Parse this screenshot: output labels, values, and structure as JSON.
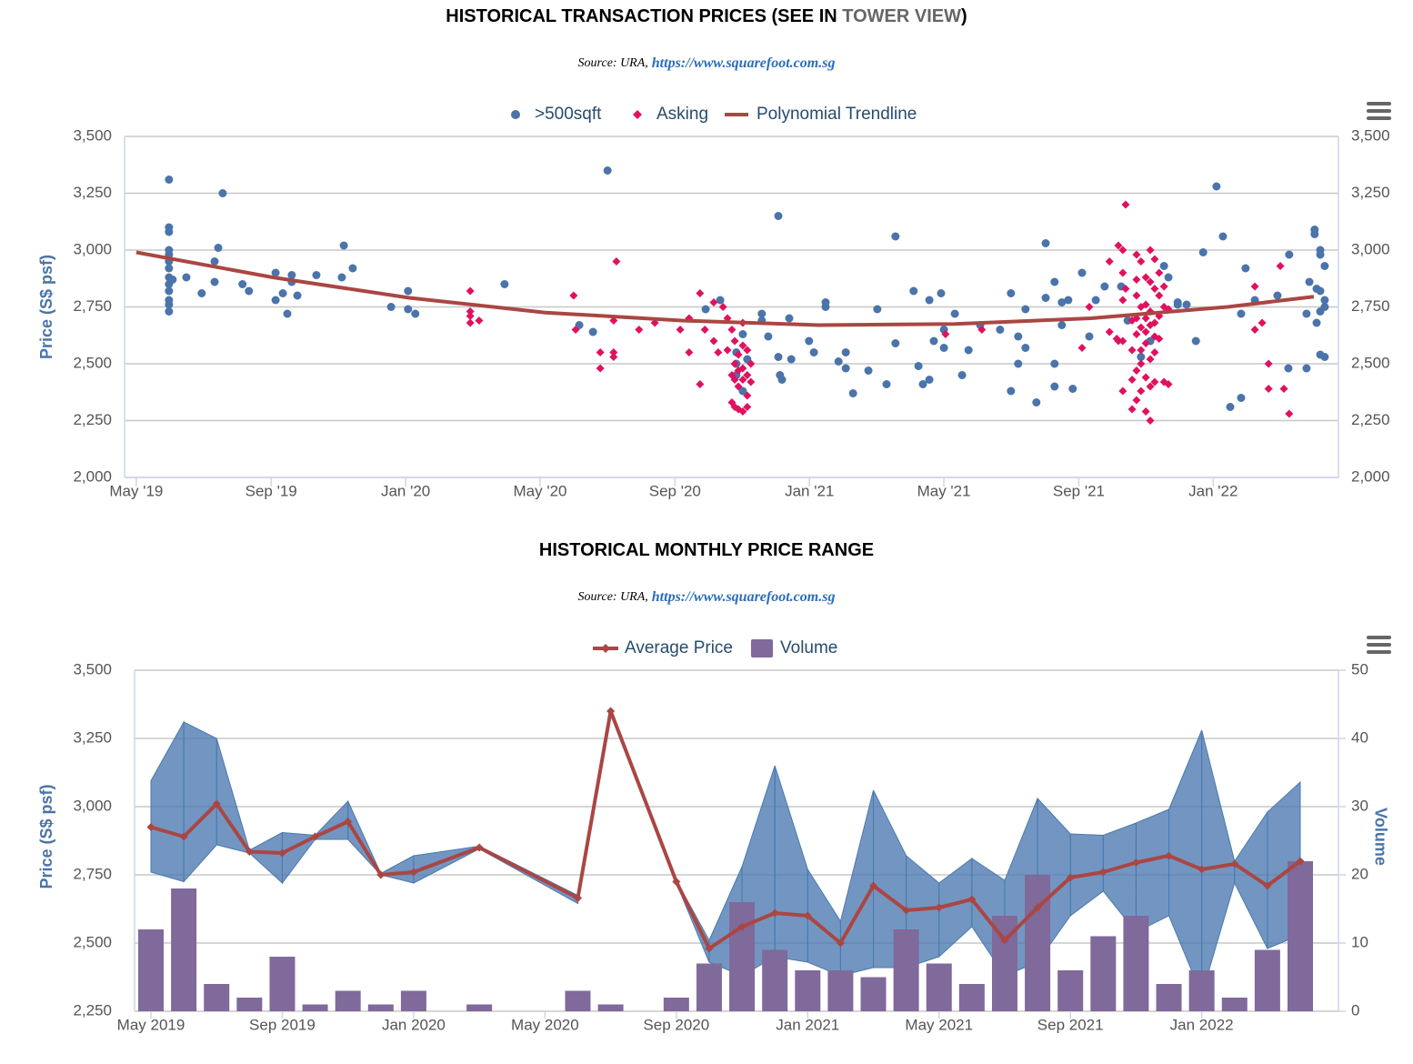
{
  "chart_data": [
    {
      "type": "scatter",
      "title": "HISTORICAL TRANSACTION PRICES (SEE IN ",
      "title_link": "TOWER VIEW",
      "title_end": ")",
      "source": "Source: URA,",
      "source_link": "https://www.squarefoot.com.sg",
      "y_label": "Price (S$ psf)",
      "xlim": [
        2019.304,
        2022.31
      ],
      "xticks": [
        {
          "value": 2019.333,
          "label": "May '19"
        },
        {
          "value": 2019.667,
          "label": "Sep '19"
        },
        {
          "value": 2020,
          "label": "Jan '20"
        },
        {
          "value": 2020.333,
          "label": "May '20"
        },
        {
          "value": 2020.667,
          "label": "Sep '20"
        },
        {
          "value": 2021,
          "label": "Jan '21"
        },
        {
          "value": 2021.333,
          "label": "May '21"
        },
        {
          "value": 2021.667,
          "label": "Sep '21"
        },
        {
          "value": 2022,
          "label": "Jan '22"
        }
      ],
      "ylim": [
        2000,
        3500
      ],
      "yticks": [
        {
          "value": 2000,
          "label": "2,000"
        },
        {
          "value": 2250,
          "label": "2,250"
        },
        {
          "value": 2500,
          "label": "2,500"
        },
        {
          "value": 2750,
          "label": "2,750"
        },
        {
          "value": 3000,
          "label": "3,000"
        },
        {
          "value": 3250,
          "label": "3,250"
        },
        {
          "value": 3500,
          "label": "3,500"
        }
      ],
      "grid": true,
      "series": [
        {
          "name": ">500sqft",
          "color": "#4a74aa",
          "marker": "circle",
          "x": [
            2019.414,
            2019.414,
            2019.414,
            2019.414,
            2019.414,
            2019.414,
            2019.414,
            2019.414,
            2019.414,
            2019.414,
            2019.414,
            2019.414,
            2019.414,
            2019.423,
            2019.457,
            2019.495,
            2019.527,
            2019.527,
            2019.536,
            2019.547,
            2019.596,
            2019.612,
            2019.678,
            2019.678,
            2019.696,
            2019.707,
            2019.718,
            2019.718,
            2019.732,
            2019.779,
            2019.842,
            2019.847,
            2019.869,
            2019.964,
            2020.006,
            2020.006,
            2020.024,
            2020.245,
            2020.43,
            2020.464,
            2020.5,
            2020.743,
            2020.779,
            2020.819,
            2020.819,
            2020.819,
            2020.835,
            2020.835,
            2020.846,
            2020.882,
            2020.882,
            2020.898,
            2020.923,
            2020.923,
            2020.927,
            2020.932,
            2020.95,
            2020.955,
            2020.999,
            2021.011,
            2021.04,
            2021.04,
            2021.072,
            2021.09,
            2021.09,
            2021.108,
            2021.146,
            2021.168,
            2021.191,
            2021.213,
            2021.213,
            2021.258,
            2021.27,
            2021.281,
            2021.297,
            2021.297,
            2021.308,
            2021.326,
            2021.333,
            2021.333,
            2021.36,
            2021.378,
            2021.394,
            2021.423,
            2021.472,
            2021.499,
            2021.499,
            2021.517,
            2021.517,
            2021.535,
            2021.535,
            2021.562,
            2021.585,
            2021.585,
            2021.607,
            2021.607,
            2021.607,
            2021.625,
            2021.625,
            2021.641,
            2021.652,
            2021.675,
            2021.693,
            2021.709,
            2021.731,
            2021.772,
            2021.788,
            2021.821,
            2021.844,
            2021.878,
            2021.889,
            2021.912,
            2021.912,
            2021.934,
            2021.957,
            2021.975,
            2022.008,
            2022.024,
            2022.042,
            2022.069,
            2022.069,
            2022.08,
            2022.103,
            2022.159,
            2022.186,
            2022.188,
            2022.231,
            2022.231,
            2022.238,
            2022.251,
            2022.251,
            2022.256,
            2022.256,
            2022.265,
            2022.265,
            2022.265,
            2022.265,
            2022.265,
            2022.276,
            2022.276,
            2022.276,
            2022.276
          ],
          "values": [
            3310,
            3100,
            3080,
            3000,
            2980,
            2950,
            2920,
            2880,
            2850,
            2820,
            2780,
            2760,
            2730,
            2870,
            2880,
            2810,
            2860,
            2950,
            3010,
            3250,
            2850,
            2820,
            2900,
            2780,
            2810,
            2720,
            2890,
            2860,
            2800,
            2890,
            2880,
            3020,
            2920,
            2750,
            2820,
            2740,
            2720,
            2850,
            2670,
            2640,
            3350,
            2740,
            2780,
            2550,
            2500,
            2450,
            2630,
            2380,
            2520,
            2720,
            2690,
            2620,
            3150,
            2530,
            2450,
            2430,
            2700,
            2520,
            2600,
            2550,
            2750,
            2770,
            2510,
            2550,
            2480,
            2370,
            2470,
            2740,
            2410,
            3060,
            2590,
            2820,
            2490,
            2410,
            2780,
            2430,
            2600,
            2810,
            2650,
            2570,
            2720,
            2450,
            2560,
            2670,
            2650,
            2810,
            2380,
            2500,
            2620,
            2570,
            2740,
            2330,
            3030,
            2790,
            2860,
            2400,
            2500,
            2770,
            2670,
            2780,
            2390,
            2900,
            2620,
            2780,
            2840,
            2840,
            2690,
            2530,
            2600,
            2930,
            2880,
            2770,
            2760,
            2760,
            2600,
            2990,
            3280,
            3060,
            2310,
            2720,
            2350,
            2920,
            2780,
            2800,
            2480,
            2980,
            2480,
            2720,
            2860,
            3090,
            3070,
            2830,
            2680,
            3000,
            2980,
            2820,
            2730,
            2540,
            2930,
            2530,
            2780,
            2750
          ]
        },
        {
          "name": "Asking",
          "color": "#e0115f",
          "marker": "diamond",
          "x": [
            2020.16,
            2020.16,
            2020.16,
            2020.16,
            2020.182,
            2020.416,
            2020.421,
            2020.482,
            2020.482,
            2020.515,
            2020.515,
            2020.515,
            2020.522,
            2020.578,
            2020.617,
            2020.68,
            2020.702,
            2020.702,
            2020.729,
            2020.729,
            2020.741,
            2020.763,
            2020.763,
            2020.774,
            2020.786,
            2020.797,
            2020.797,
            2020.808,
            2020.808,
            2020.808,
            2020.815,
            2020.815,
            2020.815,
            2020.815,
            2020.824,
            2020.824,
            2020.824,
            2020.824,
            2020.835,
            2020.835,
            2020.835,
            2020.835,
            2020.835,
            2020.846,
            2020.846,
            2020.846,
            2020.846,
            2020.855,
            2020.855,
            2021.337,
            2021.427,
            2021.675,
            2021.693,
            2021.743,
            2021.743,
            2021.761,
            2021.765,
            2021.765,
            2021.776,
            2021.776,
            2021.776,
            2021.776,
            2021.776,
            2021.783,
            2021.783,
            2021.799,
            2021.799,
            2021.799,
            2021.799,
            2021.81,
            2021.81,
            2021.81,
            2021.81,
            2021.81,
            2021.81,
            2021.81,
            2021.821,
            2021.821,
            2021.821,
            2021.821,
            2021.821,
            2021.821,
            2021.833,
            2021.833,
            2021.833,
            2021.833,
            2021.833,
            2021.833,
            2021.833,
            2021.844,
            2021.844,
            2021.844,
            2021.844,
            2021.844,
            2021.844,
            2021.844,
            2021.855,
            2021.855,
            2021.855,
            2021.855,
            2021.855,
            2021.855,
            2021.866,
            2021.866,
            2021.866,
            2021.866,
            2021.878,
            2021.878,
            2021.878,
            2021.889,
            2021.889,
            2022.103,
            2022.103,
            2022.121,
            2022.137,
            2022.137,
            2022.166,
            2022.175,
            2022.188
          ],
          "values": [
            2820,
            2730,
            2710,
            2680,
            2690,
            2800,
            2650,
            2550,
            2480,
            2690,
            2550,
            2530,
            2950,
            2650,
            2680,
            2650,
            2700,
            2550,
            2810,
            2410,
            2650,
            2770,
            2600,
            2550,
            2750,
            2700,
            2560,
            2650,
            2450,
            2330,
            2600,
            2500,
            2430,
            2310,
            2540,
            2470,
            2400,
            2300,
            2680,
            2580,
            2480,
            2430,
            2290,
            2560,
            2450,
            2360,
            2310,
            2500,
            2420,
            2630,
            2650,
            2570,
            2750,
            2950,
            2640,
            2610,
            3020,
            2600,
            3000,
            2900,
            2780,
            2600,
            2380,
            3200,
            2830,
            2690,
            2560,
            2430,
            2300,
            2980,
            2870,
            2800,
            2700,
            2630,
            2470,
            2340,
            2950,
            2750,
            2660,
            2560,
            2500,
            2380,
            2880,
            2760,
            2700,
            2640,
            2590,
            2440,
            2290,
            3000,
            2860,
            2730,
            2670,
            2520,
            2400,
            2250,
            2960,
            2830,
            2680,
            2620,
            2550,
            2420,
            2900,
            2800,
            2710,
            2610,
            2840,
            2750,
            2420,
            2740,
            2410,
            2840,
            2650,
            2680,
            2500,
            2390,
            2930,
            2390,
            2280
          ]
        },
        {
          "name": "Polynomial Trendline",
          "color": "#aa4643",
          "marker": "none",
          "x": [
            2019.333,
            2019.671,
            2020.009,
            2020.346,
            2020.684,
            2021.022,
            2021.36,
            2021.697,
            2022.035,
            2022.249
          ],
          "values": [
            2990,
            2880,
            2790,
            2725,
            2690,
            2670,
            2675,
            2700,
            2750,
            2795
          ]
        }
      ]
    },
    {
      "type": "combo",
      "title": "HISTORICAL MONTHLY PRICE RANGE",
      "source": "Source: URA,",
      "source_link": "https://www.squarefoot.com.sg",
      "y_label": "Price (S$ psf)",
      "y2_label": "Volume",
      "categories": [
        "May 2019",
        null,
        null,
        null,
        "Sep 2019",
        null,
        null,
        null,
        "Jan 2020",
        null,
        null,
        null,
        "May 2020",
        null,
        null,
        null,
        "Sep 2020",
        null,
        null,
        null,
        "Jan 2021",
        null,
        null,
        null,
        "May 2021",
        null,
        null,
        null,
        "Sep 2021",
        null,
        null,
        null,
        "Jan 2022",
        null,
        null,
        null
      ],
      "ylim": [
        2250,
        3500
      ],
      "yticks": [
        {
          "value": 2250,
          "label": "2,250"
        },
        {
          "value": 2500,
          "label": "2,500"
        },
        {
          "value": 2750,
          "label": "2,750"
        },
        {
          "value": 3000,
          "label": "3,000"
        },
        {
          "value": 3250,
          "label": "3,250"
        },
        {
          "value": 3500,
          "label": "3,500"
        }
      ],
      "y2lim": [
        0,
        50
      ],
      "y2ticks": [
        0,
        10,
        20,
        30,
        40,
        50
      ],
      "grid": true,
      "range": {
        "color": "#4a79b0",
        "low": [
          2760,
          2725,
          2860,
          2830,
          2720,
          2880,
          2880,
          2750,
          2720,
          null,
          2845,
          null,
          null,
          2645,
          3350,
          null,
          2720,
          2430,
          2380,
          2450,
          2430,
          2380,
          2410,
          2410,
          2450,
          2560,
          2380,
          2430,
          2600,
          2690,
          2540,
          2600,
          2310,
          2720,
          2480,
          2530
        ],
        "high": [
          3095,
          3310,
          3250,
          2840,
          2905,
          2895,
          3020,
          2755,
          2820,
          null,
          2855,
          null,
          null,
          2675,
          3350,
          null,
          2730,
          2510,
          2780,
          3150,
          2770,
          2580,
          3060,
          2820,
          2720,
          2810,
          2730,
          3030,
          2900,
          2895,
          2940,
          2990,
          3280,
          2800,
          2980,
          3090
        ]
      },
      "series": [
        {
          "name": "Average Price",
          "color": "#aa4643",
          "type": "line",
          "values": [
            2925,
            2890,
            3010,
            2835,
            2830,
            2890,
            2945,
            2750,
            2760,
            null,
            2850,
            null,
            null,
            2665,
            3350,
            null,
            2725,
            2480,
            2560,
            2610,
            2600,
            2500,
            2710,
            2620,
            2630,
            2660,
            2510,
            2630,
            2740,
            2760,
            2795,
            2820,
            2770,
            2790,
            2710,
            2800
          ]
        },
        {
          "name": "Volume",
          "color": "#80699b",
          "type": "column",
          "axis": "y2",
          "values": [
            12,
            18,
            4,
            2,
            8,
            1,
            3,
            1,
            3,
            null,
            1,
            null,
            null,
            3,
            1,
            null,
            2,
            7,
            16,
            9,
            6,
            6,
            5,
            12,
            7,
            4,
            14,
            20,
            6,
            11,
            14,
            4,
            6,
            2,
            9,
            22
          ]
        }
      ]
    }
  ]
}
